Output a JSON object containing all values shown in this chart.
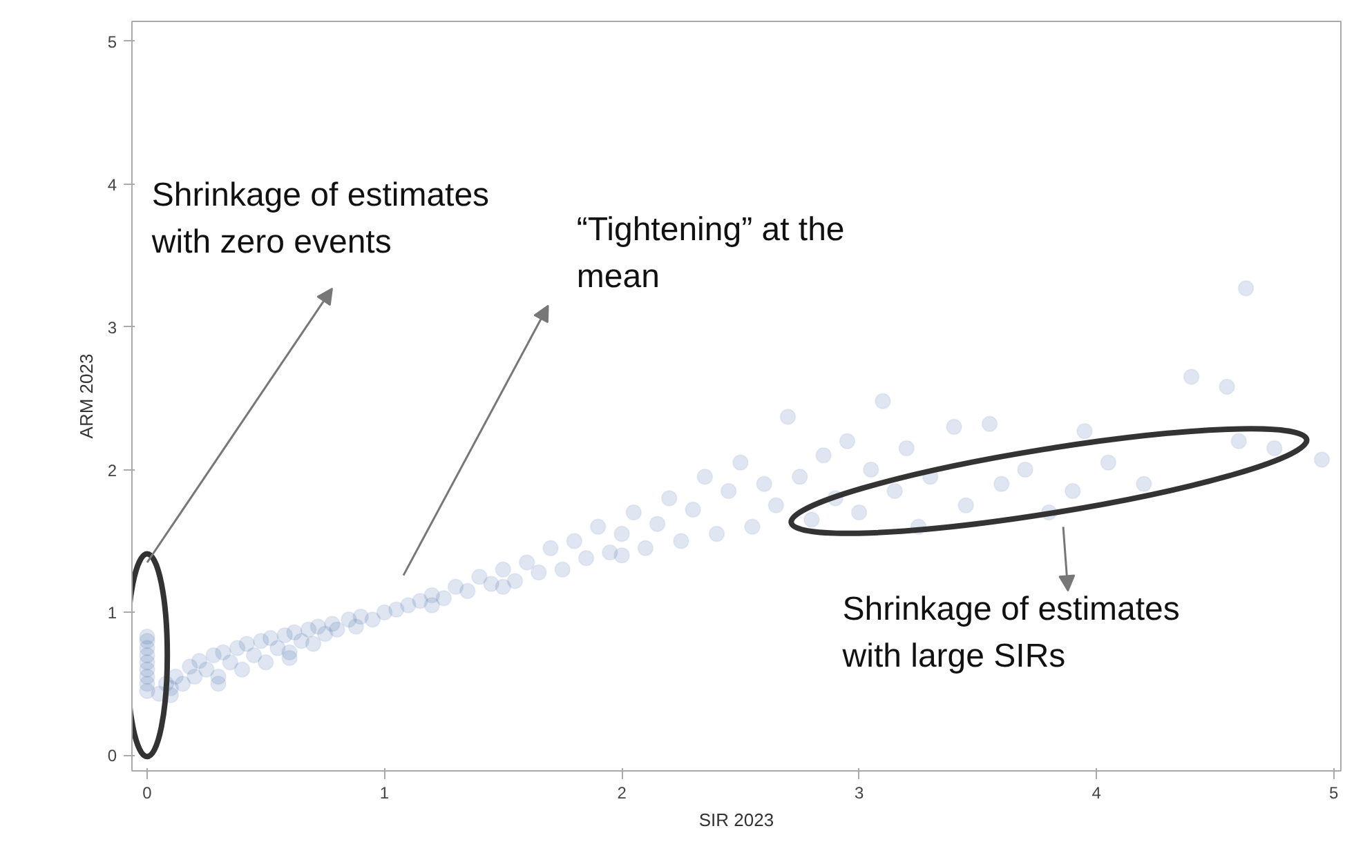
{
  "chart_data": {
    "type": "scatter",
    "xlabel": "SIR 2023",
    "ylabel": "ARM 2023",
    "xlim": [
      -0.064,
      5.03
    ],
    "ylim": [
      -0.11,
      5.14
    ],
    "xticks": [
      0,
      1,
      2,
      3,
      4,
      5
    ],
    "yticks": [
      0,
      1,
      2,
      3,
      4,
      5
    ],
    "grid": false,
    "marker": "circle",
    "annotations": [
      "Shrinkage of estimates\nwith zero events",
      "“Tightening” at the\nmean",
      "Shrinkage of estimates\nwith large SIRs"
    ],
    "series": [
      {
        "color": "#0b3d91",
        "x": [
          0,
          0,
          0,
          0,
          0,
          0,
          0,
          0,
          0,
          0.05,
          0.08,
          0.1,
          0.12,
          0.15,
          0.18,
          0.2,
          0.22,
          0.25,
          0.28,
          0.3,
          0.32,
          0.35,
          0.38,
          0.4,
          0.42,
          0.45,
          0.48,
          0.5,
          0.52,
          0.55,
          0.58,
          0.6,
          0.62,
          0.65,
          0.68,
          0.7,
          0.72,
          0.75,
          0.78,
          0.8,
          0.85,
          0.88,
          0.9,
          0.95,
          1.0,
          1.05,
          1.1,
          1.15,
          1.2,
          1.25,
          1.3,
          1.35,
          1.4,
          1.45,
          1.5,
          1.55,
          1.6,
          1.65,
          1.7,
          1.75,
          1.8,
          1.85,
          1.9,
          1.95,
          2.0,
          2.05,
          2.1,
          2.15,
          2.2,
          2.25,
          2.3,
          2.35,
          2.4,
          2.45,
          2.5,
          2.55,
          2.6,
          2.65,
          2.7,
          2.75,
          2.8,
          2.85,
          2.9,
          2.95,
          3.0,
          3.05,
          3.1,
          3.15,
          3.2,
          3.25,
          3.3,
          3.4,
          3.45,
          3.55,
          3.6,
          3.7,
          3.8,
          3.9,
          3.95,
          4.05,
          4.2,
          4.4,
          4.55,
          4.6,
          4.63,
          4.75,
          4.95,
          0.1,
          0.3,
          0.6,
          1.2,
          1.5,
          2.0
        ],
        "values": [
          0.45,
          0.5,
          0.55,
          0.6,
          0.65,
          0.7,
          0.75,
          0.8,
          0.83,
          0.43,
          0.5,
          0.47,
          0.55,
          0.5,
          0.62,
          0.55,
          0.66,
          0.6,
          0.7,
          0.55,
          0.72,
          0.65,
          0.75,
          0.6,
          0.78,
          0.7,
          0.8,
          0.65,
          0.82,
          0.75,
          0.84,
          0.72,
          0.86,
          0.8,
          0.88,
          0.78,
          0.9,
          0.85,
          0.92,
          0.88,
          0.95,
          0.9,
          0.97,
          0.95,
          1.0,
          1.02,
          1.05,
          1.08,
          1.12,
          1.1,
          1.18,
          1.15,
          1.25,
          1.2,
          1.3,
          1.22,
          1.35,
          1.28,
          1.45,
          1.3,
          1.5,
          1.38,
          1.6,
          1.42,
          1.55,
          1.7,
          1.45,
          1.62,
          1.8,
          1.5,
          1.72,
          1.95,
          1.55,
          1.85,
          2.05,
          1.6,
          1.9,
          1.75,
          2.37,
          1.95,
          1.65,
          2.1,
          1.8,
          2.2,
          1.7,
          2.0,
          2.48,
          1.85,
          2.15,
          1.6,
          1.95,
          2.3,
          1.75,
          2.32,
          1.9,
          2.0,
          1.7,
          1.85,
          2.27,
          2.05,
          1.9,
          2.65,
          2.58,
          2.2,
          3.27,
          2.15,
          2.07,
          0.42,
          0.5,
          0.68,
          1.05,
          1.18,
          1.4
        ]
      }
    ]
  }
}
